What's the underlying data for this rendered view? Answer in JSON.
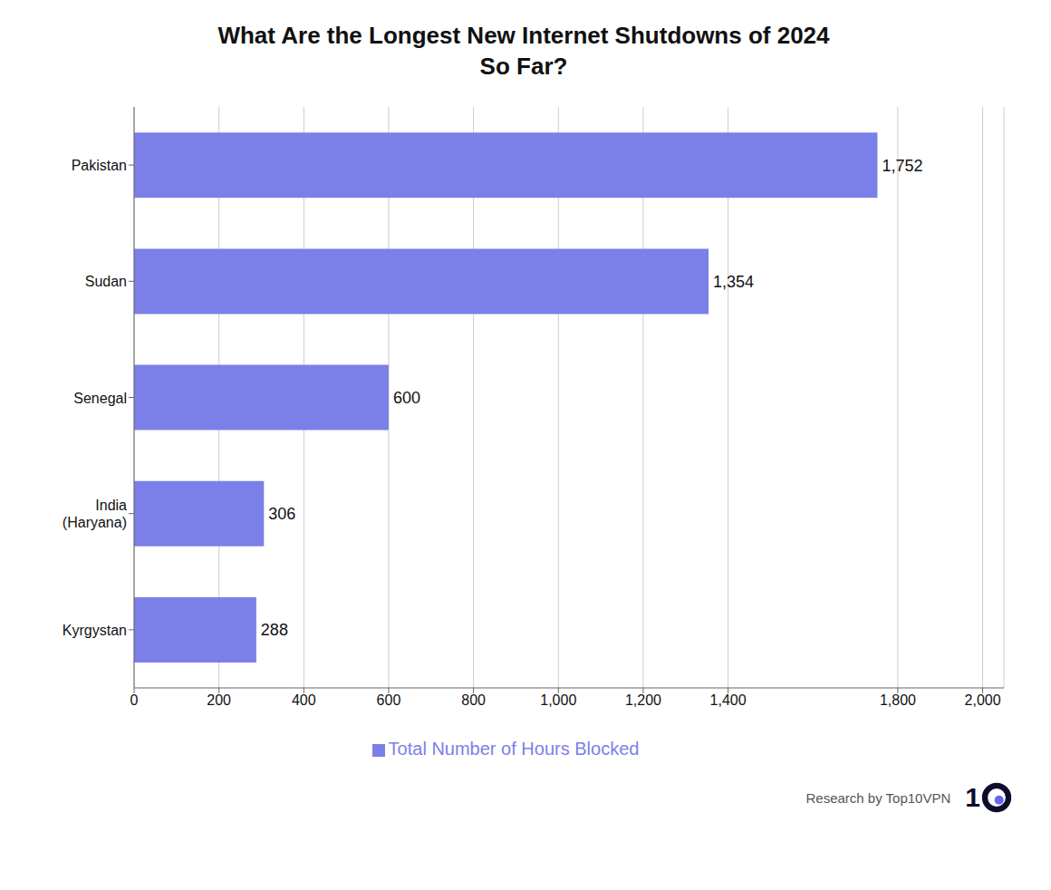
{
  "chart_data": {
    "type": "bar",
    "orientation": "horizontal",
    "title": "What Are the Longest New Internet Shutdowns of 2024\nSo Far?",
    "categories": [
      "Pakistan",
      "Sudan",
      "Senegal",
      "India\n(Haryana)",
      "Kyrgystan"
    ],
    "series": [
      {
        "name": "Total Number of Hours Blocked",
        "color": "#7B7FE8",
        "values": [
          1752,
          1354,
          600,
          306,
          288
        ],
        "value_labels": [
          "1,752",
          "1,354",
          "600",
          "306",
          "288"
        ]
      }
    ],
    "xlim": [
      0,
      2050
    ],
    "xticks": [
      0,
      200,
      400,
      600,
      800,
      {
        "value": 1000,
        "label": "1,000"
      },
      {
        "value": 1200,
        "label": "1,200"
      },
      {
        "value": 1400,
        "label": "1,400"
      },
      {
        "value": 1800,
        "label": "1,800"
      },
      {
        "value": 2000,
        "label": "2,000"
      }
    ],
    "grid": true,
    "legend": "bottom",
    "data_labels": true,
    "annotations": [
      "Research by Top10VPN",
      "1"
    ]
  }
}
